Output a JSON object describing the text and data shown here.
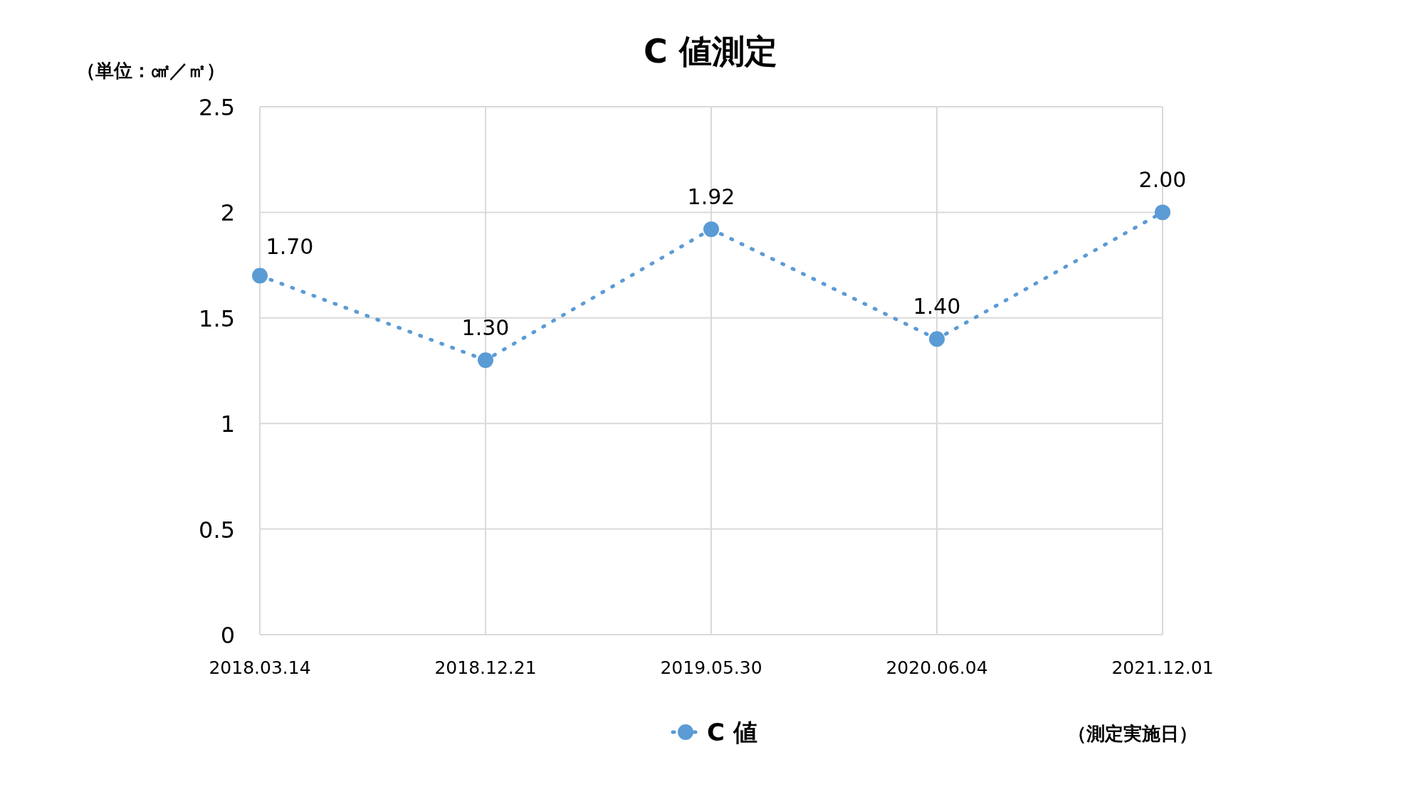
{
  "chart_data": {
    "type": "line",
    "title": "C 値測定",
    "ylabel": "（単位：㎠／㎡）",
    "xlabel": "（測定実施日）",
    "categories": [
      "2018.03.14",
      "2018.12.21",
      "2019.05.30",
      "2020.06.04",
      "2021.12.01"
    ],
    "series": [
      {
        "name": "C 値",
        "color": "#5b9bd5",
        "values": [
          1.7,
          1.3,
          1.92,
          1.4,
          2.0
        ],
        "value_labels": [
          "1.70",
          "1.30",
          "1.92",
          "1.40",
          "2.00"
        ]
      }
    ],
    "ylim": [
      0,
      2.5
    ],
    "yticks": [
      0,
      0.5,
      1,
      1.5,
      2,
      2.5
    ],
    "grid": true,
    "legend": "bottom",
    "marker": "circle",
    "line_style": "dotted"
  }
}
